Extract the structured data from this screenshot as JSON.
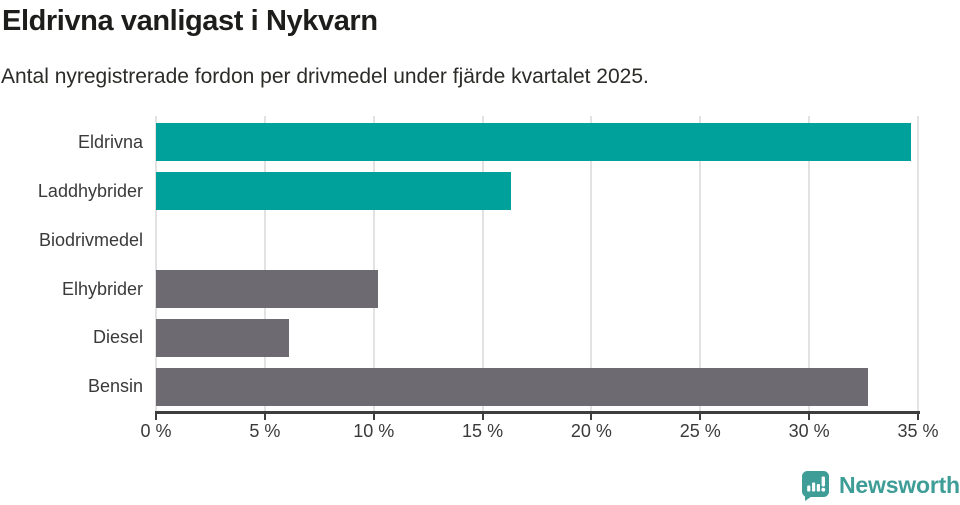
{
  "header": {
    "title": "Eldrivna vanligast i Nykvarn",
    "subtitle": "Antal nyregistrerade fordon per drivmedel under fjärde kvartalet 2025."
  },
  "chart_data": {
    "type": "bar",
    "orientation": "horizontal",
    "title": "Eldrivna vanligast i Nykvarn",
    "subtitle": "Antal nyregistrerade fordon per drivmedel under fjärde kvartalet 2025.",
    "categories": [
      "Eldrivna",
      "Laddhybrider",
      "Biodrivmedel",
      "Elhybrider",
      "Diesel",
      "Bensin"
    ],
    "values": [
      34.7,
      16.3,
      0,
      10.2,
      6.1,
      32.7
    ],
    "unit": "%",
    "xlabel": "",
    "ylabel": "",
    "xlim": [
      0,
      35
    ],
    "xticks": [
      0,
      5,
      10,
      15,
      20,
      25,
      30,
      35
    ],
    "xtick_labels": [
      "0 %",
      "5 %",
      "10 %",
      "15 %",
      "20 %",
      "25 %",
      "30 %",
      "35 %"
    ],
    "bar_colors": [
      "#00A19A",
      "#00A19A",
      "#6D6B71",
      "#6D6B71",
      "#6D6B71",
      "#6D6B71"
    ],
    "grid": true,
    "legend": false
  },
  "colors": {
    "background": "#FFFFFF",
    "teal_bar": "#00A19A",
    "gray_bar": "#6D6B71",
    "gridline": "#E2E2E2",
    "axis": "#3D3D3D",
    "title_text": "#1D1D1B",
    "subtitle_text": "#2B2B28",
    "label_text": "#3A3A3A",
    "logo": "#3E9D96"
  },
  "branding": {
    "logo_text": "Newsworthy",
    "logo_icon": "bar-chart-speech-bubble-icon"
  }
}
